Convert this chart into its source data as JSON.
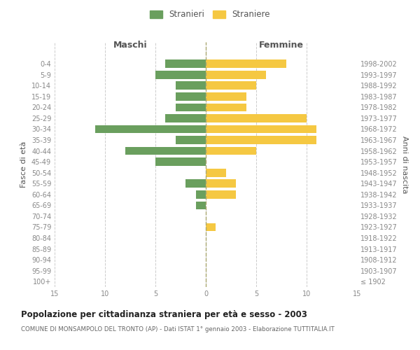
{
  "age_groups": [
    "100+",
    "95-99",
    "90-94",
    "85-89",
    "80-84",
    "75-79",
    "70-74",
    "65-69",
    "60-64",
    "55-59",
    "50-54",
    "45-49",
    "40-44",
    "35-39",
    "30-34",
    "25-29",
    "20-24",
    "15-19",
    "10-14",
    "5-9",
    "0-4"
  ],
  "birth_years": [
    "≤ 1902",
    "1903-1907",
    "1908-1912",
    "1913-1917",
    "1918-1922",
    "1923-1927",
    "1928-1932",
    "1933-1937",
    "1938-1942",
    "1943-1947",
    "1948-1952",
    "1953-1957",
    "1958-1962",
    "1963-1967",
    "1968-1972",
    "1973-1977",
    "1978-1982",
    "1983-1987",
    "1988-1992",
    "1993-1997",
    "1998-2002"
  ],
  "males": [
    0,
    0,
    0,
    0,
    0,
    0,
    0,
    1,
    1,
    2,
    0,
    5,
    8,
    3,
    11,
    4,
    3,
    3,
    3,
    5,
    4
  ],
  "females": [
    0,
    0,
    0,
    0,
    0,
    1,
    0,
    0,
    3,
    3,
    2,
    0,
    5,
    11,
    11,
    10,
    4,
    4,
    5,
    6,
    8
  ],
  "male_color": "#6a9f5e",
  "female_color": "#f5c842",
  "title": "Popolazione per cittadinanza straniera per età e sesso - 2003",
  "subtitle": "COMUNE DI MONSAMPOLO DEL TRONTO (AP) - Dati ISTAT 1° gennaio 2003 - Elaborazione TUTTITALIA.IT",
  "legend_male": "Stranieri",
  "legend_female": "Straniere",
  "xlabel_left": "Maschi",
  "xlabel_right": "Femmine",
  "ylabel_left": "Fasce di età",
  "ylabel_right": "Anni di nascita",
  "xlim": 15,
  "bg_color": "#ffffff",
  "grid_color": "#cccccc",
  "bar_height": 0.75,
  "tick_color": "#888888",
  "axis_label_color": "#555555"
}
